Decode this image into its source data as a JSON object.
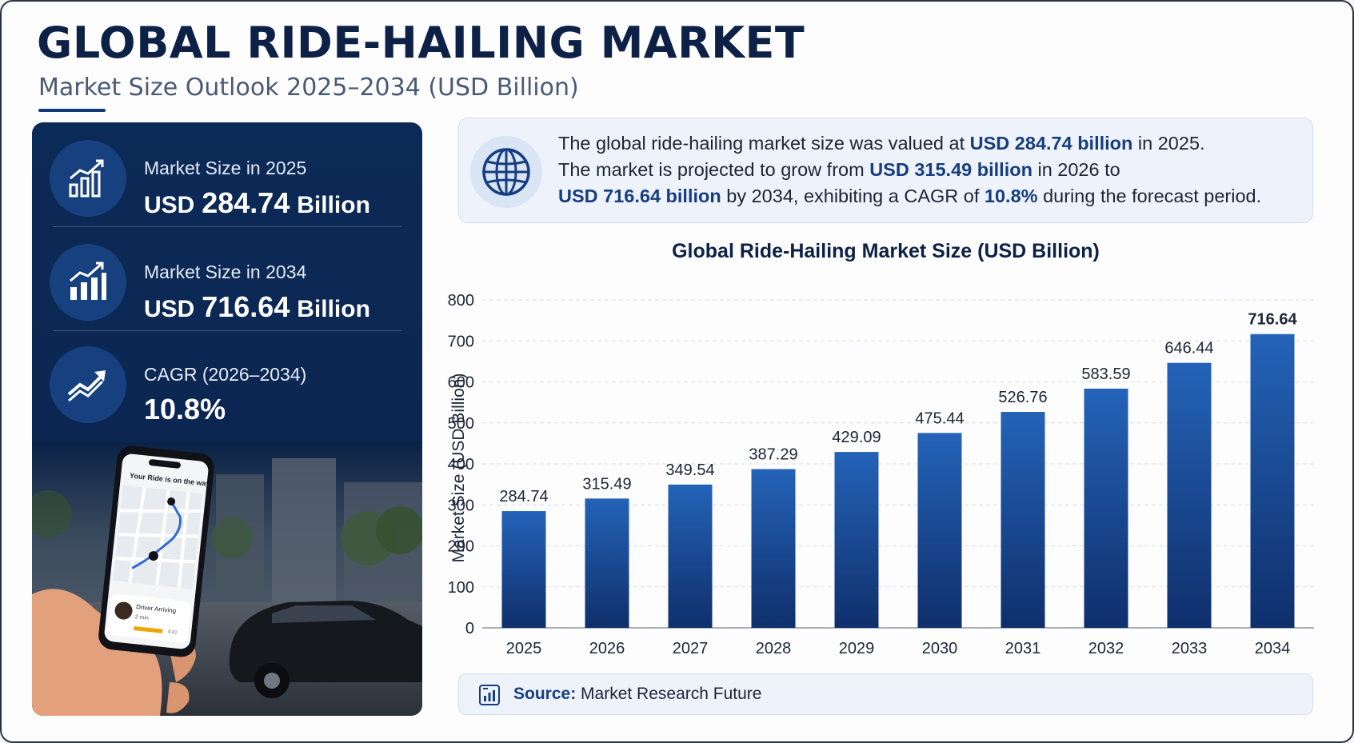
{
  "header": {
    "title": "GLOBAL RIDE-HAILING MARKET",
    "subtitle": "Market Size Outlook 2025–2034 (USD Billion)"
  },
  "stats": [
    {
      "label": "Market Size in 2025",
      "prefix": "USD",
      "value": "284.74",
      "suffix": "Billion",
      "icon": "bar-chart-icon"
    },
    {
      "label": "Market Size in 2034",
      "prefix": "USD",
      "value": "716.64",
      "suffix": "Billion",
      "icon": "growth-chart-icon"
    },
    {
      "label": "CAGR (2026–2034)",
      "prefix": "",
      "value": "10.8%",
      "suffix": "",
      "icon": "trend-up-icon"
    }
  ],
  "phone": {
    "status": "Your Ride is on the way",
    "driver_label": "Driver Arriving",
    "driver_eta": "2 min",
    "price": "$.82"
  },
  "summary": {
    "line1": {
      "pre": "The global ride-hailing market size was valued at ",
      "b1": "USD 284.74 billion",
      "post": " in 2025."
    },
    "line2": {
      "pre": "The market is projected to grow from ",
      "b1": "USD 315.49 billion",
      "post": " in 2026 to"
    },
    "line3": {
      "b1": "USD 716.64 billion",
      "mid": " by 2034, exhibiting a CAGR of ",
      "b2": "10.8%",
      "post": " during the forecast period."
    }
  },
  "chart_data": {
    "type": "bar",
    "title": "Global Ride-Hailing Market Size (USD Billion)",
    "ylabel": "Market Size (USD Billion)",
    "xlabel": "",
    "categories": [
      "2025",
      "2026",
      "2027",
      "2028",
      "2029",
      "2030",
      "2031",
      "2032",
      "2033",
      "2034"
    ],
    "values": [
      284.74,
      315.49,
      349.54,
      387.29,
      429.09,
      475.44,
      526.76,
      583.59,
      646.44,
      716.64
    ],
    "value_labels": [
      "284.74",
      "315.49",
      "349.54",
      "387.29",
      "429.09",
      "475.44",
      "526.76",
      "583.59",
      "646.44",
      "716.64"
    ],
    "ylim": [
      0,
      800
    ],
    "yticks": [
      0,
      100,
      200,
      300,
      400,
      500,
      600,
      700,
      800
    ],
    "grid": true,
    "bar_color_top": "#2463b8",
    "bar_color_bottom": "#0f2f6b"
  },
  "source": {
    "label": "Source:",
    "text": "Market Research Future"
  }
}
